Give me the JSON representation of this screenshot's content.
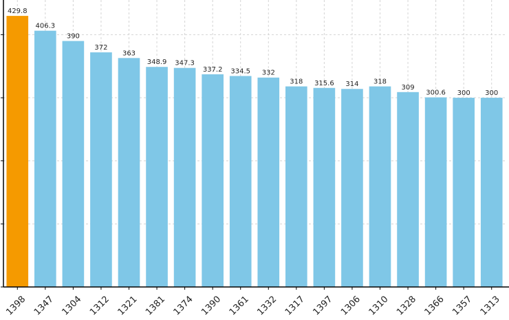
{
  "chart_data": {
    "type": "bar",
    "categories": [
      "1398",
      "1347",
      "1304",
      "1312",
      "1321",
      "1381",
      "1374",
      "1390",
      "1361",
      "1332",
      "1317",
      "1397",
      "1306",
      "1310",
      "1328",
      "1366",
      "1357",
      "1313"
    ],
    "values": [
      429.8,
      406.3,
      390,
      372,
      363,
      348.9,
      347.3,
      337.2,
      334.5,
      332,
      318,
      315.6,
      314,
      318,
      309,
      300.6,
      300,
      300
    ],
    "colors": [
      "#f59a00",
      "#7fc7e7",
      "#7fc7e7",
      "#7fc7e7",
      "#7fc7e7",
      "#7fc7e7",
      "#7fc7e7",
      "#7fc7e7",
      "#7fc7e7",
      "#7fc7e7",
      "#7fc7e7",
      "#7fc7e7",
      "#7fc7e7",
      "#7fc7e7",
      "#7fc7e7",
      "#7fc7e7",
      "#7fc7e7",
      "#7fc7e7"
    ],
    "ylim": [
      0,
      455
    ],
    "yticks": [
      0,
      100,
      200,
      300,
      400
    ],
    "grid": true
  }
}
